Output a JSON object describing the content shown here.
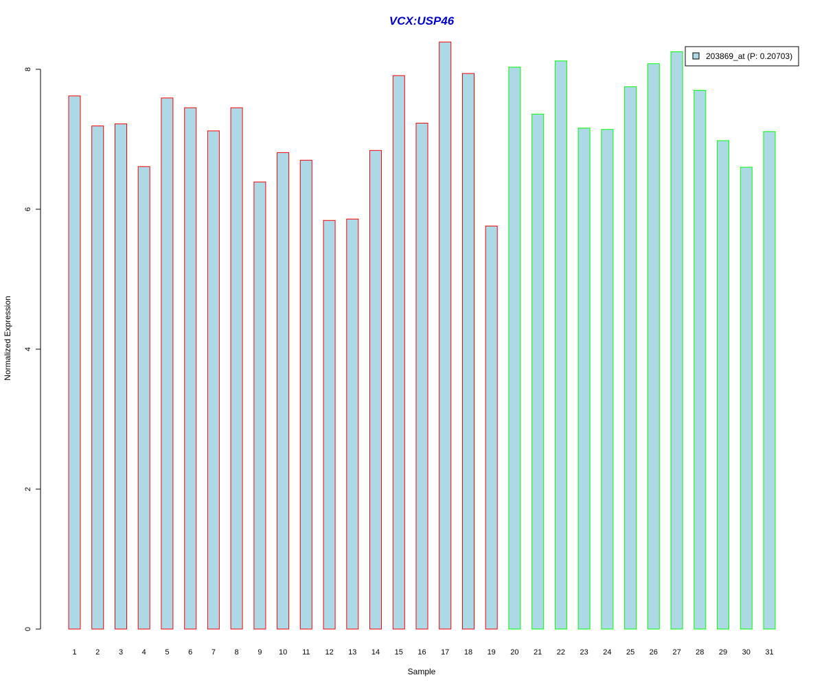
{
  "chart_data": {
    "type": "bar",
    "title": "VCX:USP46",
    "xlabel": "Sample",
    "ylabel": "Normalized Expression",
    "ylim": [
      0,
      8.4
    ],
    "yticks": [
      "0",
      "2",
      "4",
      "6",
      "8"
    ],
    "grid": false,
    "legend": {
      "position": "top-right",
      "entries": [
        {
          "label": "203869_at (P: 0.20703)",
          "fill": "#add8e6"
        }
      ]
    },
    "categories": [
      "1",
      "2",
      "3",
      "4",
      "5",
      "6",
      "7",
      "8",
      "9",
      "10",
      "11",
      "12",
      "13",
      "14",
      "15",
      "16",
      "17",
      "18",
      "19",
      "20",
      "21",
      "22",
      "23",
      "24",
      "25",
      "26",
      "27",
      "28",
      "29",
      "30",
      "31"
    ],
    "series": [
      {
        "name": "203869_at (P: 0.20703)",
        "fill": "#add8e6",
        "values": [
          7.62,
          7.19,
          7.22,
          6.61,
          7.59,
          7.45,
          7.12,
          7.45,
          6.39,
          6.81,
          6.7,
          5.84,
          5.86,
          6.84,
          7.91,
          7.23,
          8.39,
          7.94,
          5.76,
          8.03,
          7.36,
          8.12,
          7.16,
          7.14,
          7.75,
          8.08,
          8.25,
          7.7,
          6.98,
          6.6,
          7.11
        ],
        "border_colors": [
          "#ff0000",
          "#ff0000",
          "#ff0000",
          "#ff0000",
          "#ff0000",
          "#ff0000",
          "#ff0000",
          "#ff0000",
          "#ff0000",
          "#ff0000",
          "#ff0000",
          "#ff0000",
          "#ff0000",
          "#ff0000",
          "#ff0000",
          "#ff0000",
          "#ff0000",
          "#ff0000",
          "#ff0000",
          "#00ff00",
          "#00ff00",
          "#00ff00",
          "#00ff00",
          "#00ff00",
          "#00ff00",
          "#00ff00",
          "#00ff00",
          "#00ff00",
          "#00ff00",
          "#00ff00",
          "#00ff00"
        ]
      }
    ]
  }
}
